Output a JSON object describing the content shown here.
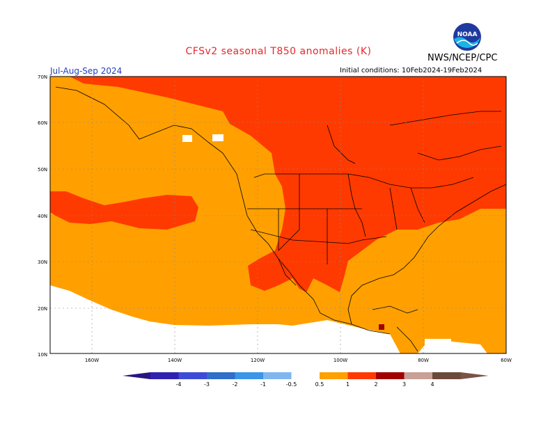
{
  "header": {
    "title": "CFSv2 seasonal T850 anomalies (K)",
    "period": "Jul-Aug-Sep 2024",
    "initial_conditions": "Initial conditions: 10Feb2024-19Feb2024",
    "organization": "NWS/NCEP/CPC",
    "logo_text": "NOAA",
    "logo_icon": "noaa-logo-icon"
  },
  "map": {
    "lat_labels": [
      "70N",
      "60N",
      "50N",
      "40N",
      "30N",
      "20N",
      "10N"
    ],
    "lon_labels": [
      "160W",
      "140W",
      "120W",
      "100W",
      "80W",
      "60W"
    ],
    "colors": {
      "ocean_white": "#ffffff",
      "anom_0_5_1": "#ffa000",
      "anom_1_2": "#ff3a00",
      "anom_2_3": "#a00000"
    }
  },
  "colorbar": {
    "labels": [
      "-4",
      "-3",
      "-2",
      "-1",
      "-0.5",
      "0.5",
      "1",
      "2",
      "3",
      "4"
    ],
    "colors": [
      "#3022b0",
      "#3d4bd6",
      "#2f6ec9",
      "#3b95e8",
      "#7fb6f0",
      "#ffffff",
      "#ffa000",
      "#ff3a00",
      "#a00000",
      "#c9a096",
      "#6b4a3a"
    ],
    "low_end_color": "#2a1680",
    "high_end_color": "#7a5246"
  }
}
